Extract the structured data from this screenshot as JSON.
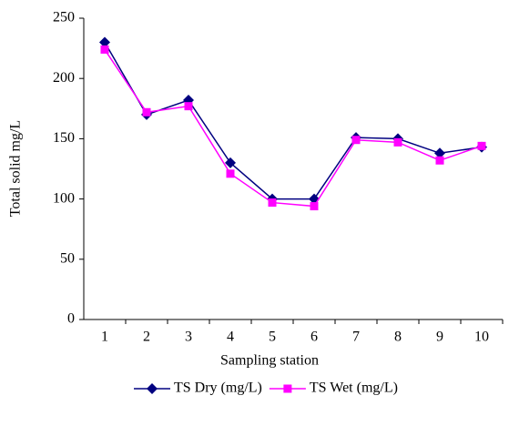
{
  "chart_data": {
    "type": "line",
    "x_label": "Sampling station",
    "y_label": "Total solid mg/L",
    "categories": [
      "1",
      "2",
      "3",
      "4",
      "5",
      "6",
      "7",
      "8",
      "9",
      "10"
    ],
    "series": [
      {
        "name": "TS Dry (mg/L)",
        "color": "#000080",
        "marker": "diamond",
        "values": [
          230,
          170,
          182,
          130,
          100,
          100,
          151,
          150,
          138,
          143
        ]
      },
      {
        "name": "TS Wet (mg/L)",
        "color": "#ff00ff",
        "marker": "square",
        "values": [
          224,
          172,
          177,
          121,
          97,
          94,
          149,
          147,
          132,
          144
        ]
      }
    ],
    "ylim": [
      0,
      250
    ],
    "yticks": [
      0,
      50,
      100,
      150,
      200,
      250
    ],
    "grid": false,
    "legend": "bottom"
  }
}
